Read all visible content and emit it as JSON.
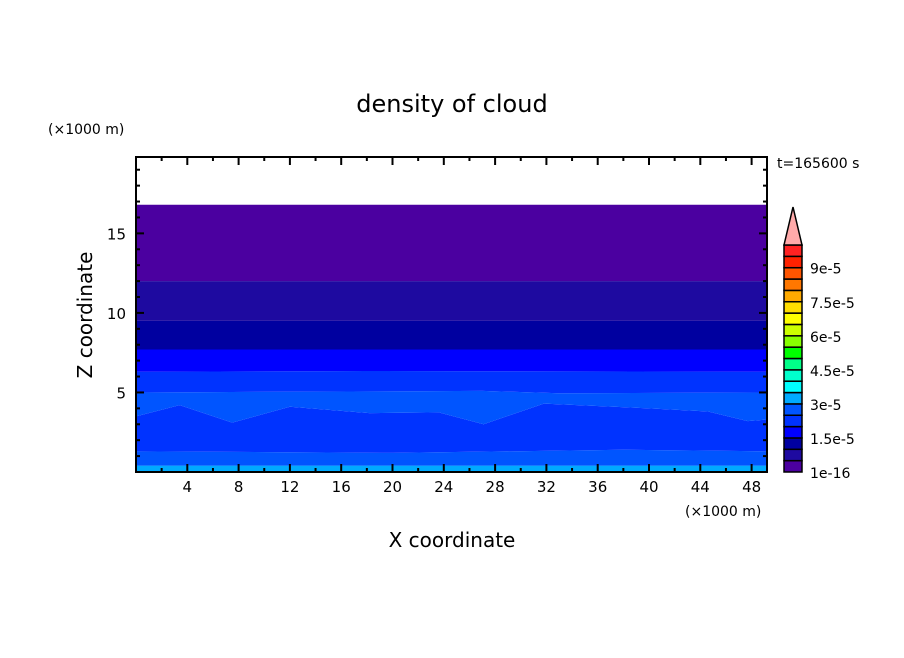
{
  "chart_data": {
    "type": "contour",
    "title": "density of cloud",
    "xlabel": "X coordinate",
    "ylabel": "Z coordinate",
    "x_unit": "(×1000 m)",
    "y_unit": "(×1000 m)",
    "time_label": "t=165600 s",
    "xlim": [
      0,
      49.2
    ],
    "ylim": [
      0,
      19.8
    ],
    "x_ticks": [
      4,
      8,
      12,
      16,
      20,
      24,
      28,
      32,
      36,
      40,
      44,
      48
    ],
    "y_ticks": [
      5,
      10,
      15
    ],
    "colorbar": {
      "levels_step": 5e-06,
      "colors": [
        "#4B00A0",
        "#1E0AA0",
        "#0000A0",
        "#0000FF",
        "#0033FF",
        "#0055FF",
        "#00AAFF",
        "#00FFFF",
        "#00FFCC",
        "#00FF88",
        "#00FF00",
        "#88FF00",
        "#CCFF00",
        "#FFFF00",
        "#FFDD00",
        "#FFAA00",
        "#FF7700",
        "#FF5500",
        "#FF2200",
        "#FF2222"
      ],
      "over_color": "#FFAAAA",
      "labels": [
        {
          "level_index": 0,
          "text": "1e-16"
        },
        {
          "level_index": 3,
          "text": "1.5e-5"
        },
        {
          "level_index": 6,
          "text": "3e-5"
        },
        {
          "level_index": 9,
          "text": "4.5e-5"
        },
        {
          "level_index": 12,
          "text": "6e-5"
        },
        {
          "level_index": 15,
          "text": "7.5e-5"
        },
        {
          "level_index": 18,
          "text": "9e-5"
        }
      ]
    },
    "bands": [
      {
        "color": "#00AAFF",
        "bottom": [
          [
            0,
            0
          ],
          [
            49.2,
            0
          ]
        ],
        "top": [
          [
            0,
            0.4
          ],
          [
            49.2,
            0.4
          ]
        ]
      },
      {
        "color": "#0055FF",
        "bottom": [
          [
            0,
            0.4
          ],
          [
            49.2,
            0.4
          ]
        ],
        "top": [
          [
            0,
            1.3
          ],
          [
            20,
            1.2
          ],
          [
            38,
            1.4
          ],
          [
            49.2,
            1.3
          ]
        ]
      },
      {
        "color": "#0033FF",
        "bottom": [
          [
            0,
            1.3
          ],
          [
            20,
            1.2
          ],
          [
            38,
            1.4
          ],
          [
            49.2,
            1.3
          ]
        ],
        "top": [
          [
            0,
            3.5
          ],
          [
            3.4,
            4.2
          ],
          [
            7.5,
            3.1
          ],
          [
            12,
            4.1
          ],
          [
            18.2,
            3.7
          ],
          [
            23.6,
            3.75
          ],
          [
            27.1,
            3.0
          ],
          [
            31.8,
            4.3
          ],
          [
            40,
            4.0
          ],
          [
            44.6,
            3.8
          ],
          [
            47.7,
            3.2
          ],
          [
            49.2,
            3.3
          ]
        ]
      },
      {
        "color": "#0055FF",
        "bottom": [
          [
            0,
            3.5
          ],
          [
            3.4,
            4.2
          ],
          [
            7.5,
            3.1
          ],
          [
            12,
            4.1
          ],
          [
            18.2,
            3.7
          ],
          [
            23.6,
            3.75
          ],
          [
            27.1,
            3.0
          ],
          [
            31.8,
            4.3
          ],
          [
            40,
            4.0
          ],
          [
            44.6,
            3.8
          ],
          [
            47.7,
            3.2
          ],
          [
            49.2,
            3.3
          ]
        ],
        "top": [
          [
            0,
            5.0
          ],
          [
            27,
            5.1
          ],
          [
            33,
            4.95
          ],
          [
            49.2,
            5.0
          ]
        ]
      },
      {
        "color": "#0033FF",
        "bottom": [
          [
            0,
            5.0
          ],
          [
            27,
            5.1
          ],
          [
            33,
            4.95
          ],
          [
            49.2,
            5.0
          ]
        ],
        "top": [
          [
            0,
            6.3
          ],
          [
            18,
            6.35
          ],
          [
            49.2,
            6.3
          ]
        ]
      },
      {
        "color": "#0000FF",
        "bottom": [
          [
            0,
            6.3
          ],
          [
            18,
            6.35
          ],
          [
            49.2,
            6.3
          ]
        ],
        "top": [
          [
            0,
            7.7
          ],
          [
            49.2,
            7.7
          ]
        ]
      },
      {
        "color": "#0000A0",
        "bottom": [
          [
            0,
            7.7
          ],
          [
            49.2,
            7.7
          ]
        ],
        "top": [
          [
            0,
            9.5
          ],
          [
            49.2,
            9.5
          ]
        ]
      },
      {
        "color": "#1E0AA0",
        "bottom": [
          [
            0,
            9.5
          ],
          [
            49.2,
            9.5
          ]
        ],
        "top": [
          [
            0,
            12.0
          ],
          [
            49.2,
            12.0
          ]
        ]
      },
      {
        "color": "#4B00A0",
        "bottom": [
          [
            0,
            12.0
          ],
          [
            49.2,
            12.0
          ]
        ],
        "top": [
          [
            0,
            16.8
          ],
          [
            49.2,
            16.8
          ]
        ]
      }
    ]
  }
}
